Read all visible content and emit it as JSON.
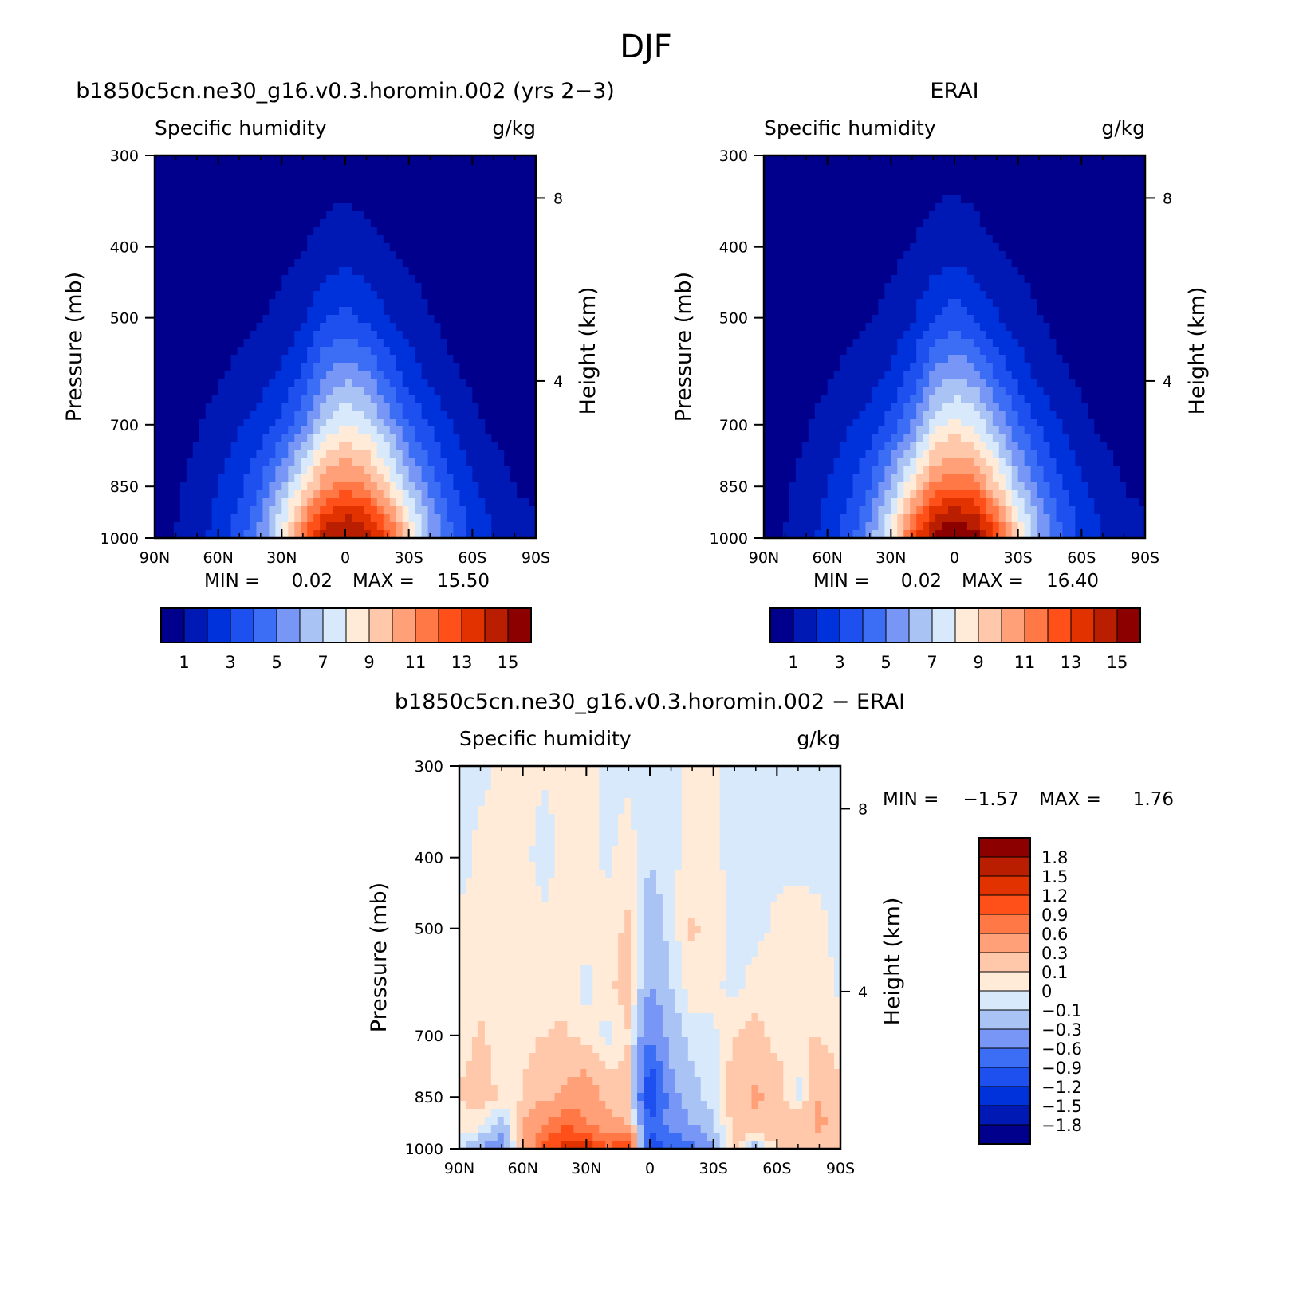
{
  "figure": {
    "title": "DJF"
  },
  "palettes": {
    "humidity": [
      "#00008c",
      "#0019b4",
      "#0032dc",
      "#1e50f0",
      "#3c6ef5",
      "#7896f5",
      "#aac3f5",
      "#d7e9fa",
      "#ffebd7",
      "#ffc8aa",
      "#ffa078",
      "#ff7846",
      "#ff5019",
      "#e13200",
      "#b91e00",
      "#8c0000"
    ],
    "difference": [
      "#00008c",
      "#0019b4",
      "#0032dc",
      "#1e50f0",
      "#3c6ef5",
      "#7896f5",
      "#aac3f5",
      "#d7e9fa",
      "#ffebd7",
      "#ffc8aa",
      "#ffa078",
      "#ff7846",
      "#ff5019",
      "#e13200",
      "#b91e00",
      "#8c0000"
    ]
  },
  "chart_data": [
    {
      "type": "heatmap",
      "panel_title": "b1850c5cn.ne30_g16.v0.3.horomin.002 (yrs 2-3)",
      "left_label": "Specific humidity",
      "right_label": "g/kg",
      "xlabel": "",
      "ylabel": "Pressure (mb)",
      "y2label": "Height (km)",
      "x_ticks": [
        "90N",
        "60N",
        "30N",
        "0",
        "30S",
        "60S",
        "90S"
      ],
      "y_ticks": [
        "300",
        "400",
        "500",
        "700",
        "850",
        "1000"
      ],
      "y2_ticks": [
        "8",
        "4"
      ],
      "ylim": [
        1000,
        300
      ],
      "y_scale": "log",
      "stats": {
        "min_label": "MIN =",
        "min": "0.02",
        "max_label": "MAX =",
        "max": "15.50"
      },
      "colorbar": {
        "orientation": "horizontal",
        "labels": [
          "1",
          "3",
          "5",
          "7",
          "9",
          "11",
          "13",
          "15"
        ]
      },
      "lat": [
        90,
        80,
        70,
        60,
        50,
        40,
        30,
        20,
        10,
        0,
        -10,
        -20,
        -30,
        -40,
        -50,
        -60,
        -70,
        -80,
        -90
      ],
      "plev": [
        300,
        400,
        500,
        600,
        700,
        850,
        925,
        1000
      ],
      "values": [
        [
          0.02,
          0.03,
          0.04,
          0.08,
          0.15,
          0.22,
          0.32,
          0.45,
          0.55,
          0.62,
          0.55,
          0.45,
          0.32,
          0.2,
          0.12,
          0.06,
          0.03,
          0.02,
          0.02
        ],
        [
          0.05,
          0.08,
          0.12,
          0.22,
          0.38,
          0.55,
          0.75,
          0.95,
          1.25,
          1.4,
          1.2,
          1.0,
          0.75,
          0.5,
          0.3,
          0.15,
          0.08,
          0.05,
          0.04
        ],
        [
          0.12,
          0.18,
          0.28,
          0.45,
          0.7,
          0.95,
          1.25,
          1.8,
          2.9,
          3.3,
          2.8,
          2.0,
          1.5,
          1.05,
          0.62,
          0.35,
          0.2,
          0.12,
          0.1
        ],
        [
          0.25,
          0.4,
          0.6,
          0.9,
          1.25,
          1.6,
          2.2,
          3.2,
          5.0,
          5.8,
          5.2,
          3.8,
          2.6,
          1.8,
          1.2,
          0.78,
          0.5,
          0.35,
          0.3
        ],
        [
          0.4,
          0.6,
          0.9,
          1.4,
          1.9,
          2.5,
          3.3,
          4.8,
          7.2,
          8.0,
          7.4,
          5.8,
          4.0,
          2.9,
          2.0,
          1.3,
          0.8,
          0.55,
          0.45
        ],
        [
          0.6,
          0.85,
          1.3,
          2.0,
          2.8,
          4.0,
          6.0,
          8.5,
          10.8,
          11.5,
          11.0,
          9.0,
          6.5,
          4.6,
          3.2,
          2.2,
          1.5,
          0.98,
          0.8
        ],
        [
          0.7,
          0.95,
          1.5,
          2.2,
          3.2,
          4.8,
          7.2,
          10.5,
          13.0,
          13.8,
          13.2,
          11.0,
          8.0,
          5.5,
          3.8,
          2.6,
          1.8,
          1.2,
          1.0
        ],
        [
          0.8,
          1.0,
          1.6,
          2.4,
          3.5,
          5.4,
          8.2,
          12.0,
          14.6,
          15.3,
          14.8,
          12.6,
          9.0,
          6.2,
          4.1,
          2.8,
          1.9,
          1.3,
          1.1
        ]
      ]
    },
    {
      "type": "heatmap",
      "panel_title": "ERAI",
      "left_label": "Specific humidity",
      "right_label": "g/kg",
      "xlabel": "",
      "ylabel": "Pressure (mb)",
      "y2label": "Height (km)",
      "x_ticks": [
        "90N",
        "60N",
        "30N",
        "0",
        "30S",
        "60S",
        "90S"
      ],
      "y_ticks": [
        "300",
        "400",
        "500",
        "700",
        "850",
        "1000"
      ],
      "y2_ticks": [
        "8",
        "4"
      ],
      "ylim": [
        1000,
        300
      ],
      "y_scale": "log",
      "stats": {
        "min_label": "MIN =",
        "min": "0.02",
        "max_label": "MAX =",
        "max": "16.40"
      },
      "colorbar": {
        "orientation": "horizontal",
        "labels": [
          "1",
          "3",
          "5",
          "7",
          "9",
          "11",
          "13",
          "15"
        ]
      },
      "lat": [
        90,
        80,
        70,
        60,
        50,
        40,
        30,
        20,
        10,
        0,
        -10,
        -20,
        -30,
        -40,
        -50,
        -60,
        -70,
        -80,
        -90
      ],
      "plev": [
        300,
        400,
        500,
        600,
        700,
        850,
        925,
        1000
      ],
      "values": [
        [
          0.02,
          0.03,
          0.04,
          0.08,
          0.15,
          0.22,
          0.32,
          0.45,
          0.58,
          0.66,
          0.58,
          0.45,
          0.32,
          0.2,
          0.12,
          0.06,
          0.03,
          0.02,
          0.02
        ],
        [
          0.05,
          0.08,
          0.12,
          0.22,
          0.38,
          0.55,
          0.75,
          1.0,
          1.3,
          1.5,
          1.25,
          1.0,
          0.75,
          0.5,
          0.3,
          0.15,
          0.08,
          0.05,
          0.04
        ],
        [
          0.12,
          0.18,
          0.28,
          0.45,
          0.7,
          0.95,
          1.3,
          1.9,
          3.0,
          3.5,
          2.9,
          2.1,
          1.5,
          1.05,
          0.62,
          0.35,
          0.2,
          0.12,
          0.1
        ],
        [
          0.25,
          0.4,
          0.6,
          0.9,
          1.25,
          1.6,
          2.2,
          3.3,
          5.2,
          6.1,
          5.4,
          3.9,
          2.6,
          1.8,
          1.2,
          0.78,
          0.5,
          0.35,
          0.3
        ],
        [
          0.4,
          0.6,
          0.9,
          1.4,
          1.9,
          2.5,
          3.4,
          5.0,
          7.5,
          8.3,
          7.7,
          6.0,
          4.1,
          2.9,
          2.0,
          1.3,
          0.8,
          0.55,
          0.45
        ],
        [
          0.6,
          0.85,
          1.3,
          2.0,
          2.8,
          4.0,
          6.1,
          8.8,
          11.2,
          12.0,
          11.4,
          9.2,
          6.6,
          4.6,
          3.2,
          2.2,
          1.5,
          0.98,
          0.8
        ],
        [
          0.7,
          0.95,
          1.5,
          2.2,
          3.2,
          4.8,
          7.3,
          10.8,
          13.6,
          14.6,
          13.9,
          11.3,
          8.1,
          5.5,
          3.8,
          2.6,
          1.8,
          1.2,
          1.0
        ],
        [
          0.8,
          1.0,
          1.6,
          2.4,
          3.5,
          5.4,
          8.3,
          12.3,
          15.3,
          16.2,
          15.6,
          12.9,
          9.1,
          6.2,
          4.1,
          2.8,
          1.9,
          1.3,
          1.1
        ]
      ]
    },
    {
      "type": "heatmap",
      "panel_title": "b1850c5cn.ne30_g16.v0.3.horomin.002 - ERAI",
      "left_label": "Specific humidity",
      "right_label": "g/kg",
      "xlabel": "",
      "ylabel": "Pressure (mb)",
      "y2label": "Height (km)",
      "x_ticks": [
        "90N",
        "60N",
        "30N",
        "0",
        "30S",
        "60S",
        "90S"
      ],
      "y_ticks": [
        "300",
        "400",
        "500",
        "700",
        "850",
        "1000"
      ],
      "y2_ticks": [
        "8",
        "4"
      ],
      "ylim": [
        1000,
        300
      ],
      "y_scale": "log",
      "stats": {
        "min_label": "MIN =",
        "min": "-1.57",
        "max_label": "MAX =",
        "max": "1.76"
      },
      "colorbar": {
        "orientation": "vertical",
        "labels": [
          "1.8",
          "1.5",
          "1.2",
          "0.9",
          "0.6",
          "0.3",
          "0.1",
          "0",
          "-0.1",
          "-0.3",
          "-0.6",
          "-0.9",
          "-1.2",
          "-1.5",
          "-1.8"
        ]
      },
      "lat": [
        90,
        80,
        70,
        60,
        50,
        40,
        30,
        20,
        10,
        0,
        -10,
        -20,
        -30,
        -40,
        -50,
        -60,
        -70,
        -80,
        -90
      ],
      "plev": [
        300,
        400,
        500,
        600,
        700,
        850,
        925,
        1000
      ],
      "values": [
        [
          -0.02,
          -0.02,
          0.01,
          0.02,
          0.01,
          0.02,
          0.02,
          -0.02,
          -0.03,
          -0.05,
          -0.02,
          0.02,
          0.01,
          -0.02,
          -0.03,
          -0.02,
          -0.02,
          -0.01,
          -0.02
        ],
        [
          -0.03,
          0.02,
          0.03,
          0.02,
          -0.03,
          0.02,
          0.03,
          -0.02,
          0.05,
          -0.1,
          -0.03,
          0.05,
          0.02,
          -0.03,
          -0.03,
          -0.02,
          -0.02,
          -0.02,
          -0.03
        ],
        [
          0.02,
          0.03,
          0.04,
          0.03,
          0.02,
          0.04,
          0.05,
          0.05,
          0.12,
          -0.2,
          -0.05,
          0.12,
          0.05,
          -0.03,
          -0.03,
          0.02,
          0.03,
          0.02,
          -0.02
        ],
        [
          0.02,
          0.05,
          0.06,
          0.05,
          0.04,
          0.06,
          -0.05,
          0.08,
          0.15,
          -0.3,
          -0.1,
          0.06,
          0.02,
          -0.03,
          0.04,
          0.05,
          0.04,
          0.03,
          -0.02
        ],
        [
          0.05,
          0.12,
          0.05,
          0.06,
          0.1,
          0.12,
          0.05,
          -0.05,
          0.1,
          -0.6,
          -0.2,
          -0.05,
          -0.02,
          0.1,
          0.15,
          0.05,
          0.08,
          0.1,
          0.02
        ],
        [
          0.12,
          0.15,
          0.08,
          0.1,
          0.25,
          0.35,
          0.5,
          0.2,
          0.15,
          -1.3,
          -0.4,
          -0.15,
          -0.05,
          0.2,
          0.35,
          0.2,
          -0.05,
          0.3,
          0.15
        ],
        [
          0.03,
          0.08,
          -0.2,
          0.3,
          0.6,
          0.9,
          0.6,
          0.4,
          0.3,
          -0.8,
          -0.5,
          -0.3,
          -0.1,
          0.15,
          0.25,
          0.3,
          0.25,
          0.35,
          0.2
        ],
        [
          -0.05,
          -0.3,
          -0.5,
          0.3,
          1.0,
          1.3,
          1.5,
          0.9,
          1.2,
          -1.1,
          -0.9,
          -0.7,
          -0.3,
          0.2,
          -0.2,
          0.1,
          0.3,
          0.2,
          0.1
        ]
      ]
    }
  ]
}
